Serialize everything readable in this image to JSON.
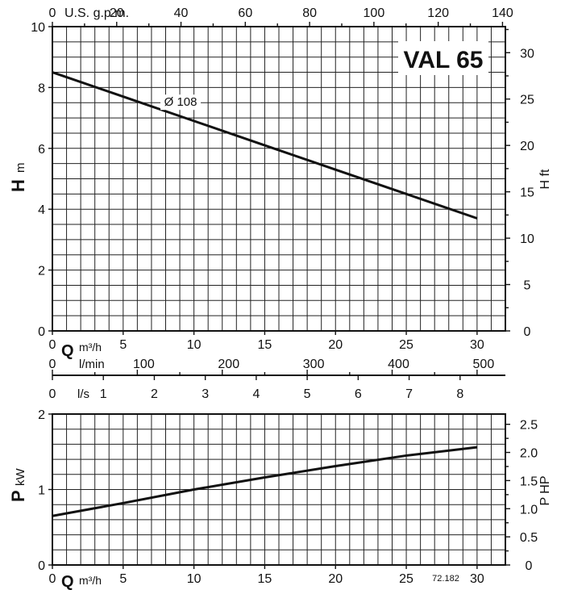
{
  "chart_data": [
    {
      "type": "line",
      "title": "VAL 65",
      "xlabel": "Q",
      "xunit": "m³/h",
      "ylabel": "H",
      "yunit": "m",
      "y2label": "H ft",
      "x2label": "U.S. g.p.m.",
      "xlim": [
        0,
        32
      ],
      "ylim": [
        0,
        10
      ],
      "x_ticks": [
        0,
        5,
        10,
        15,
        20,
        25,
        30
      ],
      "y_ticks": [
        0,
        2,
        4,
        6,
        8,
        10
      ],
      "gpm_ticks": [
        "0",
        "20",
        "40",
        "60",
        "80",
        "100",
        "120",
        "140"
      ],
      "ft_ticks": [
        "0",
        "5",
        "10",
        "15",
        "20",
        "25",
        "30"
      ],
      "grid": true,
      "series": [
        {
          "name": "Ø 108",
          "x": [
            0,
            5,
            10,
            15,
            20,
            25,
            30
          ],
          "y": [
            8.5,
            7.7,
            6.9,
            6.1,
            5.3,
            4.5,
            3.7
          ]
        }
      ]
    },
    {
      "type": "line",
      "xlabel": "Q",
      "xunit": "m³/h",
      "ylabel": "P",
      "yunit": "kW",
      "y2label": "P HP",
      "xlim": [
        0,
        32
      ],
      "ylim": [
        0,
        2
      ],
      "x_ticks": [
        0,
        5,
        10,
        15,
        20,
        25,
        30
      ],
      "y_ticks": [
        0,
        1,
        2
      ],
      "hp_ticks": [
        "0",
        "0.5",
        "1.0",
        "1.5",
        "2.0",
        "2.5"
      ],
      "grid": true,
      "series": [
        {
          "x": [
            0,
            5,
            10,
            15,
            20,
            25,
            30
          ],
          "y": [
            0.65,
            0.82,
            1.0,
            1.16,
            1.31,
            1.45,
            1.56
          ]
        }
      ],
      "code": "72.182"
    }
  ],
  "flow_scales": {
    "lmin_label": "l/min",
    "lmin_ticks": [
      "0",
      "100",
      "200",
      "300",
      "400",
      "500"
    ],
    "ls_label": "l/s",
    "ls_ticks": [
      "0",
      "1",
      "2",
      "3",
      "4",
      "5",
      "6",
      "7",
      "8"
    ]
  }
}
